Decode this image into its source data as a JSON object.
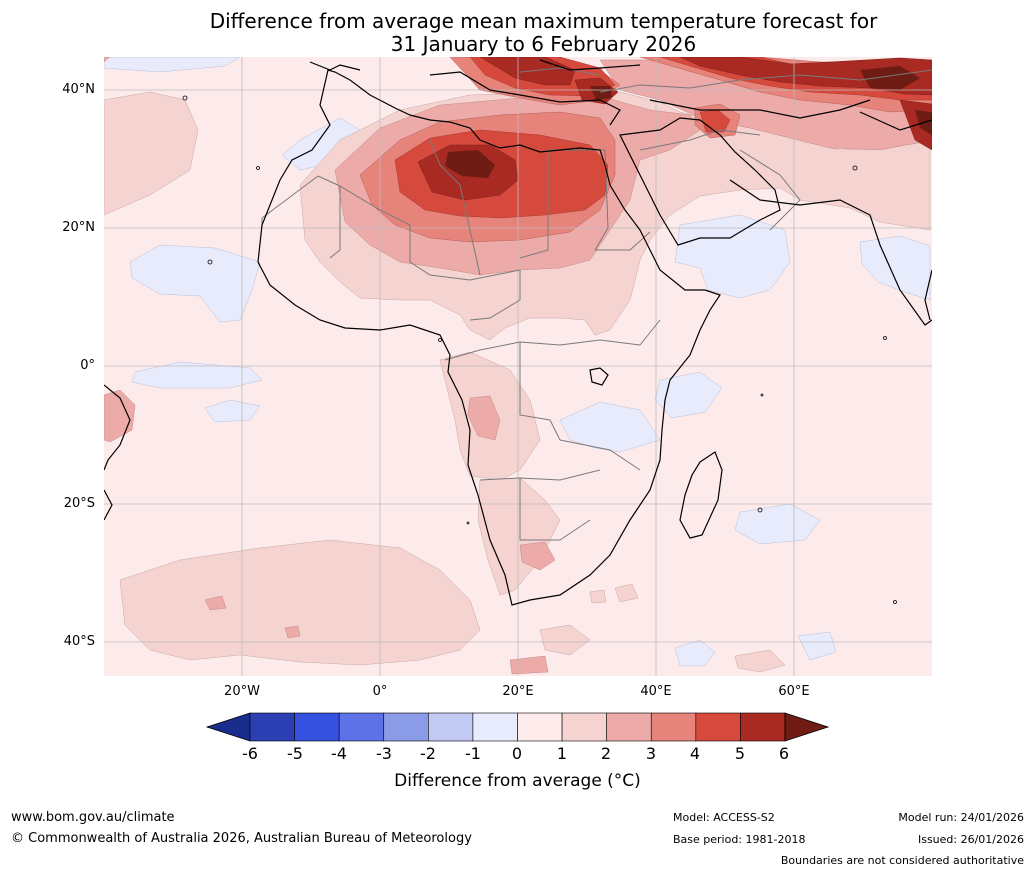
{
  "title": {
    "line1": "Difference from average mean maximum temperature forecast for",
    "line2": "31 January to 6 February 2026"
  },
  "lat_labels": [
    "40°N",
    "20°N",
    "0°",
    "20°S",
    "40°S"
  ],
  "lon_labels": [
    "20°W",
    "0°",
    "20°E",
    "40°E",
    "60°E"
  ],
  "colorbar": {
    "ticks": [
      "-6",
      "-5",
      "-4",
      "-3",
      "-2",
      "-1",
      "0",
      "1",
      "2",
      "3",
      "4",
      "5",
      "6"
    ],
    "colors": [
      "#1b2d8c",
      "#2b3fb3",
      "#3451e0",
      "#5c72e6",
      "#8a9be8",
      "#c2c9f2",
      "#e7ebfb",
      "#fcebea",
      "#f5d3d0",
      "#ecaaa8",
      "#e6847c",
      "#d64a3e",
      "#a82a22",
      "#6e1c14"
    ],
    "label": "Difference from average (°C)"
  },
  "footer": {
    "website": "www.bom.gov.au/climate",
    "copyright": "© Commonwealth of Australia 2026, Australian Bureau of Meteorology",
    "model": "Model: ACCESS-S2",
    "base_period": "Base period: 1981-2018",
    "model_run": "Model run: 24/01/2026",
    "issued": "Issued: 26/01/2026",
    "disclaimer": "Boundaries are not considered authoritative"
  }
}
